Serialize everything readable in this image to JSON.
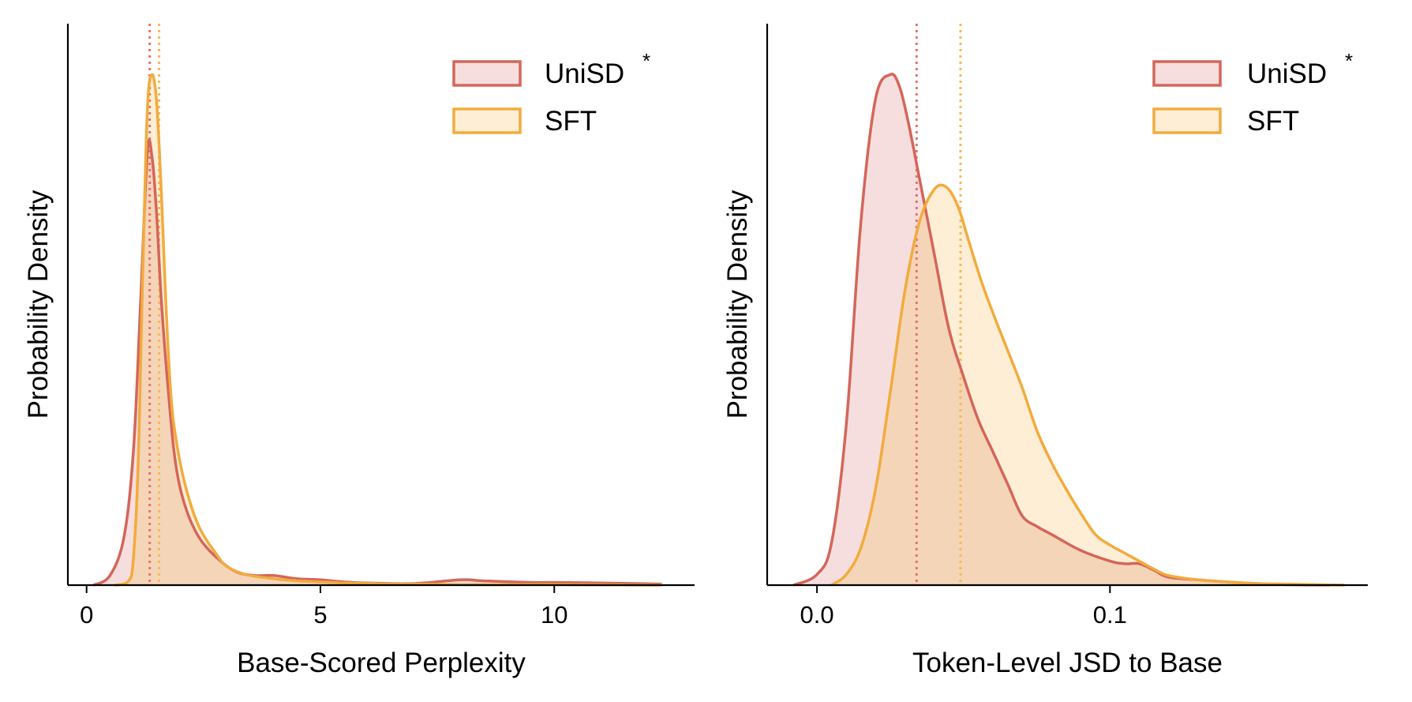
{
  "colors": {
    "unisd_line": "#d4665a",
    "unisd_fill": "#f6dede",
    "sft_line": "#f2ab3d",
    "sft_fill": "#feeed6",
    "overlap_fill": "#f5d5b8",
    "unisd_mean": "#e6736c",
    "sft_mean": "#f7b955"
  },
  "chart_data": [
    {
      "type": "area",
      "xlabel": "Base-Scored Perplexity",
      "ylabel": "Probability Density",
      "xlim": [
        -0.4,
        13.0
      ],
      "ylim": [
        0,
        1.0
      ],
      "xticks": [
        0,
        5,
        10
      ],
      "x_tick_labels": [
        "0",
        "5",
        "10"
      ],
      "legend_position": "top-right",
      "grid": false,
      "series": [
        {
          "name": "UniSD",
          "name_superscript": "*",
          "mean": 1.35,
          "x": [
            0.15,
            0.5,
            0.8,
            1.0,
            1.15,
            1.3,
            1.4,
            1.5,
            1.6,
            1.75,
            1.9,
            2.1,
            2.4,
            2.8,
            3.2,
            3.6,
            4.0,
            4.5,
            5.0,
            5.5,
            6.0,
            7.0,
            8.0,
            8.5,
            9.5,
            10.0,
            11.0,
            12.3
          ],
          "y": [
            0.0,
            0.018,
            0.09,
            0.25,
            0.52,
            0.81,
            0.8,
            0.69,
            0.53,
            0.36,
            0.23,
            0.15,
            0.09,
            0.05,
            0.025,
            0.018,
            0.018,
            0.012,
            0.01,
            0.006,
            0.004,
            0.003,
            0.01,
            0.008,
            0.005,
            0.005,
            0.004,
            0.002
          ]
        },
        {
          "name": "SFT",
          "mean": 1.55,
          "x": [
            0.6,
            0.9,
            1.0,
            1.1,
            1.2,
            1.3,
            1.4,
            1.5,
            1.6,
            1.7,
            1.8,
            1.9,
            2.1,
            2.4,
            2.8,
            3.0,
            3.4,
            4.0,
            4.5,
            5.0,
            5.5,
            6.0,
            6.5,
            7.0,
            8.0,
            9.0,
            10.0,
            11.0,
            12.3
          ],
          "y": [
            0.0,
            0.008,
            0.05,
            0.22,
            0.58,
            0.89,
            0.955,
            0.9,
            0.73,
            0.52,
            0.36,
            0.28,
            0.19,
            0.11,
            0.055,
            0.035,
            0.02,
            0.012,
            0.008,
            0.006,
            0.004,
            0.003,
            0.002,
            0.002,
            0.001,
            0.001,
            0.001,
            0.0005,
            0.0
          ]
        }
      ]
    },
    {
      "type": "area",
      "xlabel": "Token-Level JSD to Base",
      "ylabel": "Probability Density",
      "xlim": [
        -0.017,
        0.188
      ],
      "ylim": [
        0,
        1.0
      ],
      "xticks": [
        0.0,
        0.1
      ],
      "x_tick_labels": [
        "0.0",
        "0.1"
      ],
      "legend_position": "top-right",
      "grid": false,
      "series": [
        {
          "name": "UniSD",
          "name_superscript": "*",
          "mean": 0.034,
          "x": [
            -0.008,
            0.0,
            0.005,
            0.01,
            0.015,
            0.02,
            0.025,
            0.028,
            0.031,
            0.035,
            0.04,
            0.045,
            0.05,
            0.055,
            0.06,
            0.065,
            0.07,
            0.075,
            0.08,
            0.09,
            0.1,
            0.105,
            0.11,
            0.115,
            0.12,
            0.13,
            0.14,
            0.15,
            0.16,
            0.175
          ],
          "y": [
            0.0,
            0.02,
            0.08,
            0.3,
            0.68,
            0.91,
            0.955,
            0.935,
            0.87,
            0.76,
            0.62,
            0.48,
            0.39,
            0.31,
            0.25,
            0.19,
            0.13,
            0.11,
            0.095,
            0.065,
            0.045,
            0.04,
            0.04,
            0.028,
            0.015,
            0.01,
            0.006,
            0.003,
            0.001,
            0.0
          ]
        },
        {
          "name": "SFT",
          "mean": 0.049,
          "x": [
            0.005,
            0.01,
            0.015,
            0.02,
            0.025,
            0.03,
            0.035,
            0.04,
            0.044,
            0.048,
            0.052,
            0.056,
            0.06,
            0.065,
            0.07,
            0.075,
            0.08,
            0.085,
            0.09,
            0.095,
            0.1,
            0.105,
            0.11,
            0.115,
            0.12,
            0.13,
            0.14,
            0.15,
            0.16,
            0.17,
            0.18
          ],
          "y": [
            0.0,
            0.02,
            0.07,
            0.18,
            0.36,
            0.55,
            0.68,
            0.74,
            0.745,
            0.71,
            0.64,
            0.57,
            0.51,
            0.44,
            0.37,
            0.29,
            0.23,
            0.18,
            0.135,
            0.095,
            0.075,
            0.06,
            0.045,
            0.03,
            0.018,
            0.01,
            0.006,
            0.003,
            0.002,
            0.001,
            0.0
          ]
        }
      ]
    }
  ]
}
